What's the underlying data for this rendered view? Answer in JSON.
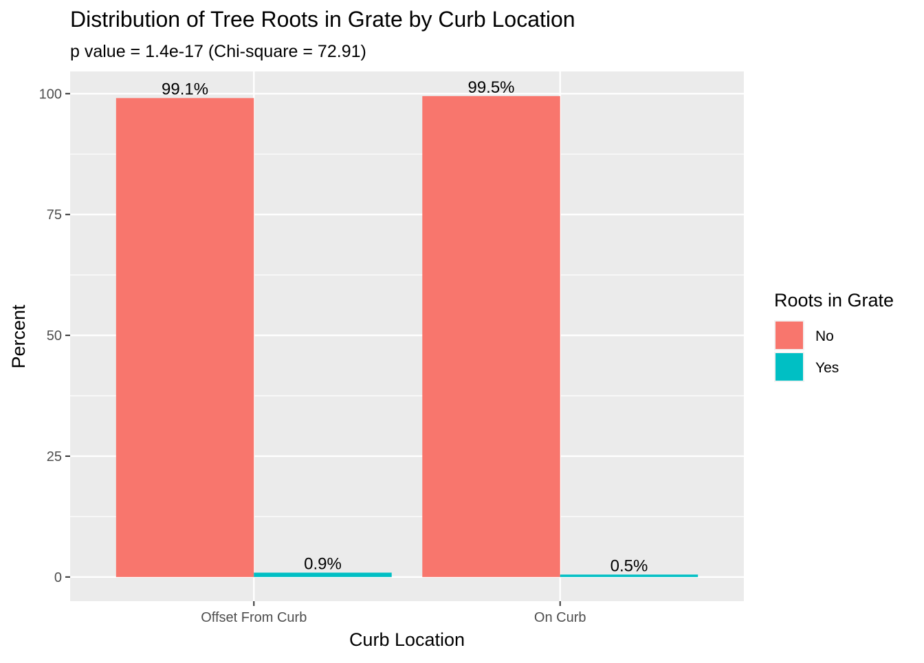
{
  "chart_data": {
    "type": "bar",
    "title": "Distribution of Tree Roots in Grate by Curb Location",
    "subtitle": "p value = 1.4e-17 (Chi-square = 72.91)",
    "xlabel": "Curb Location",
    "ylabel": "Percent",
    "categories": [
      "Offset From Curb",
      "On Curb"
    ],
    "series": [
      {
        "name": "No",
        "color": "#F8766D",
        "values": [
          99.1,
          99.5
        ],
        "labels": [
          "99.1%",
          "99.5%"
        ]
      },
      {
        "name": "Yes",
        "color": "#00BFC4",
        "values": [
          0.9,
          0.5
        ],
        "labels": [
          "0.9%",
          "0.5%"
        ]
      }
    ],
    "ylim": [
      -5,
      104.6
    ],
    "yticks": [
      0,
      25,
      50,
      75,
      100
    ],
    "ytick_labels": [
      "0",
      "25",
      "50",
      "75",
      "100"
    ],
    "grid": true,
    "legend": {
      "title": "Roots in Grate",
      "position": "right"
    },
    "colors": {
      "panel": "#EBEBEB",
      "grid": "#FFFFFF",
      "axis_text": "#4D4D4D",
      "text": "#000000"
    }
  }
}
